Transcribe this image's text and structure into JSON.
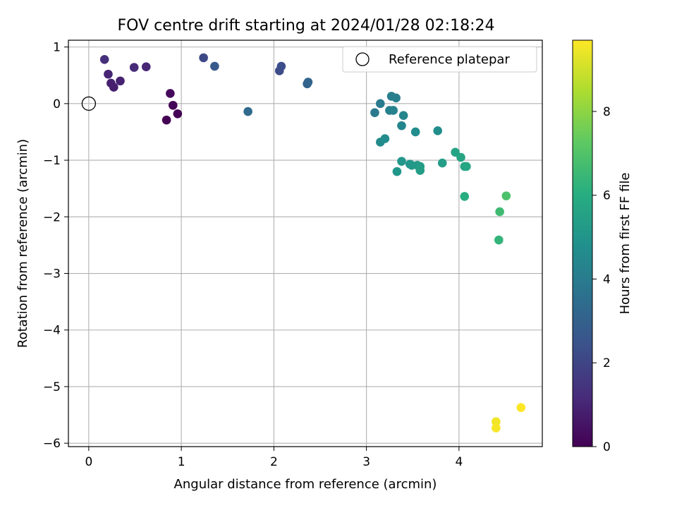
{
  "chart_data": {
    "type": "scatter",
    "title": "FOV centre drift starting at 2024/01/28 02:18:24",
    "xlabel": "Angular distance from reference (arcmin)",
    "ylabel": "Rotation from reference (arcmin)",
    "xlim": [
      -0.22,
      4.9
    ],
    "ylim": [
      -6.06,
      1.12
    ],
    "xticks": [
      0,
      1,
      2,
      3,
      4
    ],
    "yticks": [
      1,
      0,
      -1,
      -2,
      -3,
      -4,
      -5,
      -6
    ],
    "xtick_labels": [
      "0",
      "1",
      "2",
      "3",
      "4"
    ],
    "ytick_labels": [
      "1",
      "0",
      "−1",
      "−2",
      "−3",
      "−4",
      "−5",
      "−6"
    ],
    "grid": true,
    "legend": {
      "position": "top-right",
      "entries": [
        {
          "label": "Reference platepar",
          "marker": "open-circle"
        }
      ]
    },
    "reference_point": {
      "x": 0,
      "y": 0
    },
    "colorbar": {
      "label": "Hours from first FF file",
      "colormap": "viridis",
      "range": [
        0,
        9.7
      ],
      "ticks": [
        0,
        2,
        4,
        6,
        8
      ],
      "tick_labels": [
        "0",
        "2",
        "4",
        "6",
        "8"
      ]
    },
    "points": [
      {
        "x": 0.84,
        "y": -0.29,
        "hours": 0.0
      },
      {
        "x": 0.96,
        "y": -0.18,
        "hours": 0.05
      },
      {
        "x": 0.91,
        "y": -0.03,
        "hours": 0.15
      },
      {
        "x": 0.88,
        "y": 0.18,
        "hours": 0.25
      },
      {
        "x": 0.27,
        "y": 0.29,
        "hours": 0.8
      },
      {
        "x": 0.24,
        "y": 0.36,
        "hours": 0.85
      },
      {
        "x": 0.34,
        "y": 0.4,
        "hours": 0.9
      },
      {
        "x": 0.21,
        "y": 0.52,
        "hours": 1.0
      },
      {
        "x": 0.62,
        "y": 0.65,
        "hours": 1.05
      },
      {
        "x": 0.49,
        "y": 0.64,
        "hours": 1.15
      },
      {
        "x": 0.17,
        "y": 0.78,
        "hours": 1.3
      },
      {
        "x": 1.24,
        "y": 0.81,
        "hours": 2.1
      },
      {
        "x": 2.06,
        "y": 0.58,
        "hours": 2.2
      },
      {
        "x": 2.08,
        "y": 0.66,
        "hours": 2.3
      },
      {
        "x": 1.36,
        "y": 0.66,
        "hours": 2.7
      },
      {
        "x": 2.36,
        "y": 0.35,
        "hours": 3.0
      },
      {
        "x": 2.37,
        "y": 0.38,
        "hours": 3.1
      },
      {
        "x": 1.72,
        "y": -0.14,
        "hours": 3.3
      },
      {
        "x": 3.09,
        "y": -0.16,
        "hours": 3.9
      },
      {
        "x": 3.15,
        "y": 0.0,
        "hours": 4.0
      },
      {
        "x": 3.27,
        "y": 0.13,
        "hours": 4.1
      },
      {
        "x": 3.32,
        "y": 0.1,
        "hours": 4.15
      },
      {
        "x": 3.25,
        "y": -0.12,
        "hours": 4.2
      },
      {
        "x": 3.29,
        "y": -0.12,
        "hours": 4.3
      },
      {
        "x": 3.4,
        "y": -0.21,
        "hours": 4.35
      },
      {
        "x": 3.38,
        "y": -0.39,
        "hours": 4.4
      },
      {
        "x": 3.15,
        "y": -0.68,
        "hours": 4.6
      },
      {
        "x": 3.2,
        "y": -0.62,
        "hours": 4.65
      },
      {
        "x": 3.53,
        "y": -0.5,
        "hours": 4.7
      },
      {
        "x": 3.77,
        "y": -0.48,
        "hours": 4.75
      },
      {
        "x": 3.47,
        "y": -1.07,
        "hours": 5.0
      },
      {
        "x": 3.33,
        "y": -1.2,
        "hours": 5.05
      },
      {
        "x": 3.38,
        "y": -1.02,
        "hours": 5.1
      },
      {
        "x": 3.49,
        "y": -1.09,
        "hours": 5.15
      },
      {
        "x": 3.55,
        "y": -1.09,
        "hours": 5.2
      },
      {
        "x": 3.58,
        "y": -1.11,
        "hours": 5.3
      },
      {
        "x": 3.58,
        "y": -1.18,
        "hours": 5.35
      },
      {
        "x": 3.82,
        "y": -1.05,
        "hours": 5.4
      },
      {
        "x": 3.96,
        "y": -0.86,
        "hours": 5.6
      },
      {
        "x": 4.02,
        "y": -0.95,
        "hours": 5.65
      },
      {
        "x": 4.06,
        "y": -1.11,
        "hours": 5.7
      },
      {
        "x": 4.08,
        "y": -1.11,
        "hours": 5.75
      },
      {
        "x": 4.06,
        "y": -1.64,
        "hours": 6.0
      },
      {
        "x": 4.43,
        "y": -2.41,
        "hours": 6.3
      },
      {
        "x": 4.44,
        "y": -1.91,
        "hours": 6.6
      },
      {
        "x": 4.51,
        "y": -1.63,
        "hours": 6.9
      },
      {
        "x": 4.4,
        "y": -5.62,
        "hours": 9.5
      },
      {
        "x": 4.4,
        "y": -5.73,
        "hours": 9.6
      },
      {
        "x": 4.67,
        "y": -5.37,
        "hours": 9.7
      }
    ]
  }
}
